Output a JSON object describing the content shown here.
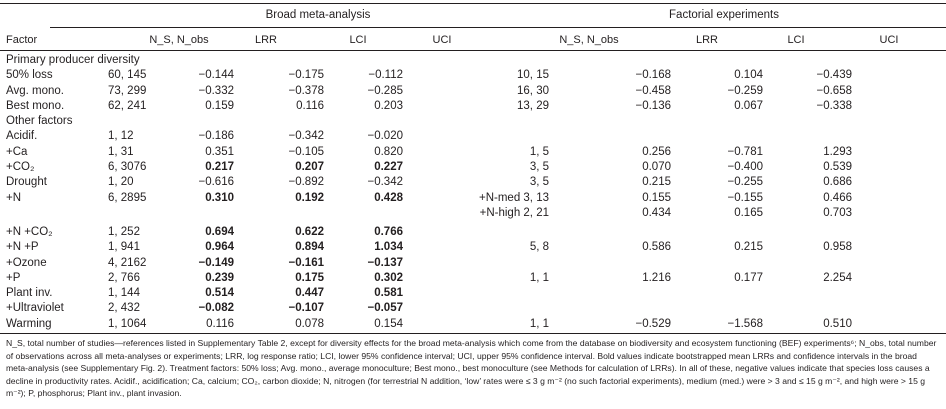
{
  "header": {
    "group_broad": "Broad meta-analysis",
    "group_factorial": "Factorial experiments",
    "col_factor": "Factor",
    "col_n": "N_S, N_obs",
    "col_lrr": "LRR",
    "col_lci": "LCI",
    "col_uci": "UCI"
  },
  "sections": [
    {
      "title": "Primary producer diversity",
      "rows": [
        {
          "factor": "50% loss",
          "broad": {
            "n": "60, 145",
            "lrr": "−0.144",
            "lci": "−0.175",
            "uci": "−0.112"
          },
          "fact": {
            "n": "10, 15",
            "lrr": "−0.168",
            "lci": "0.104",
            "uci": "−0.439"
          }
        },
        {
          "factor": "Avg. mono.",
          "broad": {
            "n": "73, 299",
            "lrr": "−0.332",
            "lci": "−0.378",
            "uci": "−0.285"
          },
          "fact": {
            "n": "16, 30",
            "lrr": "−0.458",
            "lci": "−0.259",
            "uci": "−0.658"
          }
        },
        {
          "factor": "Best mono.",
          "broad": {
            "n": "62, 241",
            "lrr": "0.159",
            "lci": "0.116",
            "uci": "0.203"
          },
          "fact": {
            "n": "13, 29",
            "lrr": "−0.136",
            "lci": "0.067",
            "uci": "−0.338"
          }
        }
      ]
    },
    {
      "title": "Other factors",
      "rows": [
        {
          "factor": "Acidif.",
          "broad": {
            "n": "1, 12",
            "lrr": "−0.186",
            "lci": "−0.342",
            "uci": "−0.020"
          },
          "fact": {
            "n": "",
            "lrr": "",
            "lci": "",
            "uci": ""
          }
        },
        {
          "factor": "+Ca",
          "broad": {
            "n": "1, 31",
            "lrr": "0.351",
            "lci": "−0.105",
            "uci": "0.820"
          },
          "fact": {
            "n": "1, 5",
            "lrr": "0.256",
            "lci": "−0.781",
            "uci": "1.293"
          }
        },
        {
          "factor": "+CO₂",
          "bold": true,
          "broad": {
            "n": "6, 3076",
            "lrr": "0.217",
            "lci": "0.207",
            "uci": "0.227"
          },
          "fact": {
            "n": "3, 5",
            "lrr": "0.070",
            "lci": "−0.400",
            "uci": "0.539"
          }
        },
        {
          "factor": "Drought",
          "broad": {
            "n": "1, 20",
            "lrr": "−0.616",
            "lci": "−0.892",
            "uci": "−0.342"
          },
          "fact": {
            "n": "3, 5",
            "lrr": "0.215",
            "lci": "−0.255",
            "uci": "0.686"
          }
        },
        {
          "factor": "+N",
          "bold": true,
          "broad": {
            "n": "6, 2895",
            "lrr": "0.310",
            "lci": "0.192",
            "uci": "0.428"
          },
          "fact": {
            "n": "+N-med 3, 13",
            "lrr": "0.155",
            "lci": "−0.155",
            "uci": "0.466"
          }
        },
        {
          "factor": "",
          "broad": {
            "n": "",
            "lrr": "",
            "lci": "",
            "uci": ""
          },
          "fact": {
            "n": "+N-high 2, 21",
            "lrr": "0.434",
            "lci": "0.165",
            "uci": "0.703"
          }
        },
        {
          "factor": "+N +CO₂",
          "bold": true,
          "gap": true,
          "broad": {
            "n": "1, 252",
            "lrr": "0.694",
            "lci": "0.622",
            "uci": "0.766"
          },
          "fact": {
            "n": "",
            "lrr": "",
            "lci": "",
            "uci": ""
          }
        },
        {
          "factor": "+N +P",
          "bold": true,
          "broad": {
            "n": "1, 941",
            "lrr": "0.964",
            "lci": "0.894",
            "uci": "1.034"
          },
          "fact": {
            "n": "5, 8",
            "lrr": "0.586",
            "lci": "0.215",
            "uci": "0.958"
          }
        },
        {
          "factor": "+Ozone",
          "bold": true,
          "broad": {
            "n": "4, 2162",
            "lrr": "−0.149",
            "lci": "−0.161",
            "uci": "−0.137"
          },
          "fact": {
            "n": "",
            "lrr": "",
            "lci": "",
            "uci": ""
          }
        },
        {
          "factor": "+P",
          "bold": true,
          "broad": {
            "n": "2, 766",
            "lrr": "0.239",
            "lci": "0.175",
            "uci": "0.302"
          },
          "fact": {
            "n": "1, 1",
            "lrr": "1.216",
            "lci": "0.177",
            "uci": "2.254"
          }
        },
        {
          "factor": "Plant inv.",
          "bold": true,
          "broad": {
            "n": "1, 144",
            "lrr": "0.514",
            "lci": "0.447",
            "uci": "0.581"
          },
          "fact": {
            "n": "",
            "lrr": "",
            "lci": "",
            "uci": ""
          }
        },
        {
          "factor": "+Ultraviolet",
          "bold": true,
          "broad": {
            "n": "2, 432",
            "lrr": "−0.082",
            "lci": "−0.107",
            "uci": "−0.057"
          },
          "fact": {
            "n": "",
            "lrr": "",
            "lci": "",
            "uci": ""
          }
        },
        {
          "factor": "Warming",
          "broad": {
            "n": "1, 1064",
            "lrr": "0.116",
            "lci": "0.078",
            "uci": "0.154"
          },
          "fact": {
            "n": "1, 1",
            "lrr": "−0.529",
            "lci": "−1.568",
            "uci": "0.510"
          }
        }
      ]
    }
  ],
  "footnote": "N_S, total number of studies—references listed in Supplementary Table 2, except for diversity effects for the broad meta-analysis which come from the database on biodiversity and ecosystem functioning (BEF) experiments⁶; N_obs, total number of observations across all meta-analyses or experiments; LRR, log response ratio; LCI, lower 95% confidence interval; UCI, upper 95% confidence interval. Bold values indicate bootstrapped mean LRRs and confidence intervals in the broad meta-analysis (see Supplementary Fig. 2). Treatment factors: 50% loss; Avg. mono., average monoculture; Best mono., best monoculture (see Methods for calculation of LRRs). In all of these, negative values indicate that species loss causes a decline in productivity rates. Acidif., acidification; Ca, calcium; CO₂, carbon dioxide; N, nitrogen (for terrestrial N addition, ‘low’ rates were ≤ 3 g m⁻² (no such factorial experiments), medium (med.) were > 3 and ≤ 15 g m⁻², and high were > 15 g m⁻²); P, phosphorus; Plant inv., plant invasion."
}
